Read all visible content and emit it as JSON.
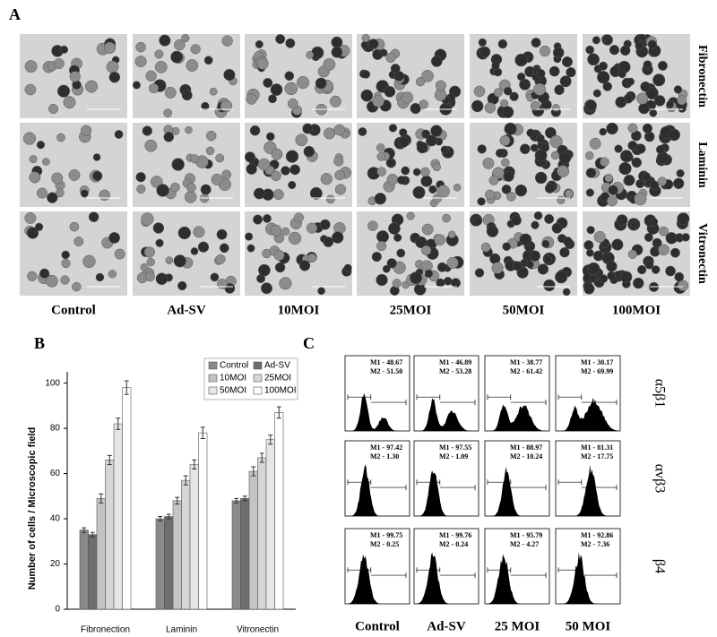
{
  "panel_a": {
    "label": "A",
    "columns": [
      "Control",
      "Ad-SV",
      "10MOI",
      "25MOI",
      "50MOI",
      "100MOI"
    ],
    "rows": [
      "Fibronectin",
      "Laminin",
      "Vitronectin"
    ]
  },
  "chart_data": {
    "type": "bar",
    "label": "B",
    "ylabel": "Number of cells / Microscopic field",
    "categories": [
      "Fibronection",
      "Laminin",
      "Vitronectin"
    ],
    "series": [
      {
        "name": "Control",
        "color": "#8a8a8a",
        "values": [
          35,
          40,
          48
        ],
        "errors": [
          1,
          1,
          1
        ]
      },
      {
        "name": "Ad-SV",
        "color": "#6e6e6e",
        "values": [
          33,
          41,
          49
        ],
        "errors": [
          1,
          1,
          1
        ]
      },
      {
        "name": "10MOI",
        "color": "#c4c4c4",
        "values": [
          49,
          48,
          61
        ],
        "errors": [
          2,
          1.5,
          2
        ]
      },
      {
        "name": "25MOI",
        "color": "#d6d6d6",
        "values": [
          66,
          57,
          67
        ],
        "errors": [
          2,
          2,
          2
        ]
      },
      {
        "name": "50MOI",
        "color": "#e6e6e6",
        "values": [
          82,
          64,
          75
        ],
        "errors": [
          2.5,
          2,
          2
        ]
      },
      {
        "name": "100MOI",
        "color": "#ffffff",
        "values": [
          98,
          78,
          87
        ],
        "errors": [
          3,
          2.5,
          2.5
        ]
      }
    ],
    "ylim": [
      0,
      105
    ],
    "yticks": [
      0,
      20,
      40,
      60,
      80,
      100
    ],
    "legend": "upper right"
  },
  "panel_c": {
    "label": "C",
    "columns": [
      "Control",
      "Ad-SV",
      "25 MOI",
      "50 MOI"
    ],
    "rows": [
      "α5β1",
      "αvβ3",
      "β4"
    ],
    "cells": [
      [
        {
          "m1": "M1 - 48.67",
          "m2": "M2 - 51.50"
        },
        {
          "m1": "M1 - 46.89",
          "m2": "M2 - 53.28"
        },
        {
          "m1": "M1 - 38.77",
          "m2": "M2 - 61.42"
        },
        {
          "m1": "M1 - 30.17",
          "m2": "M2 - 69.99"
        }
      ],
      [
        {
          "m1": "M1 - 97.42",
          "m2": "M2 - 1.30"
        },
        {
          "m1": "M1 - 97.55",
          "m2": "M2 - 1.09"
        },
        {
          "m1": "M1 - 88.97",
          "m2": "M2 - 10.24"
        },
        {
          "m1": "M1 - 81.31",
          "m2": "M2 - 17.75"
        }
      ],
      [
        {
          "m1": "M1 - 99.75",
          "m2": "M2 - 0.25"
        },
        {
          "m1": "M1 - 99.76",
          "m2": "M2 - 0.24"
        },
        {
          "m1": "M1 - 95.79",
          "m2": "M2 - 4.27"
        },
        {
          "m1": "M1 - 92.86",
          "m2": "M2 - 7.36"
        }
      ]
    ]
  }
}
